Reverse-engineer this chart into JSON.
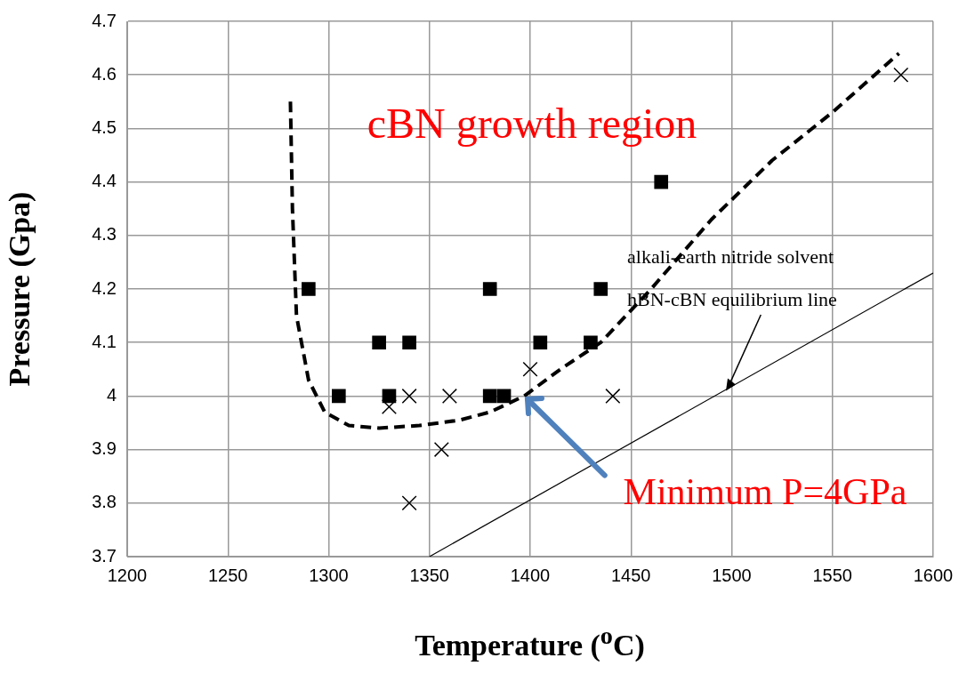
{
  "chart_data": {
    "type": "scatter",
    "xlabel": "Temperature ($^{o}$C)",
    "ylabel": "Pressure (Gpa)",
    "xlim": [
      1200,
      1600
    ],
    "xticks": [
      1200,
      1250,
      1300,
      1350,
      1400,
      1450,
      1500,
      1550,
      1600
    ],
    "ylim": [
      3.7,
      4.7
    ],
    "yticks": [
      3.7,
      3.8,
      3.9,
      {
        "value": 4,
        "label": "4"
      },
      4.1,
      4.2,
      4.3,
      4.4,
      4.5,
      4.6,
      4.7
    ],
    "grid": true,
    "legend": false,
    "series": [
      {
        "type": "scatter",
        "marker": "square",
        "color": "#000000",
        "x": [
          1290,
          1305,
          1325,
          1330,
          1340,
          1380,
          1380,
          1387,
          1405,
          1430,
          1435,
          1465
        ],
        "values": [
          4.2,
          4.0,
          4.1,
          4.0,
          4.1,
          4.2,
          4.0,
          4.0,
          4.1,
          4.1,
          4.2,
          4.4
        ]
      },
      {
        "type": "scatter",
        "marker": "cross",
        "color": "#000000",
        "x": [
          1330,
          1340,
          1360,
          1356,
          1340,
          1400,
          1441,
          1584
        ],
        "values": [
          3.98,
          4.0,
          4.0,
          3.9,
          3.8,
          4.05,
          4.0,
          4.6
        ]
      },
      {
        "type": "line",
        "marker": "none",
        "line_style": "dashed",
        "color": "#000000",
        "x": [
          1281,
          1282,
          1284,
          1290,
          1298,
          1310,
          1325,
          1345,
          1365,
          1380,
          1397,
          1415,
          1435,
          1460,
          1490,
          1520,
          1550,
          1583
        ],
        "values": [
          4.55,
          4.35,
          4.15,
          4.03,
          3.97,
          3.945,
          3.94,
          3.945,
          3.955,
          3.97,
          4.0,
          4.05,
          4.1,
          4.2,
          4.33,
          4.44,
          4.53,
          4.64
        ]
      },
      {
        "type": "line",
        "marker": "none",
        "line_style": "solid",
        "color": "#000000",
        "x": [
          1350,
          1600
        ],
        "values": [
          3.7,
          4.23
        ]
      }
    ],
    "annotations": [
      "cBN growth region",
      "alkali-earth nitride solvent",
      {
        "text": "hBN-cBN equilibrium line",
        "x": 1497,
        "y": 4.01
      },
      {
        "text": "Minimum P=4GPa",
        "x": 1397,
        "y": 4.0
      }
    ]
  }
}
